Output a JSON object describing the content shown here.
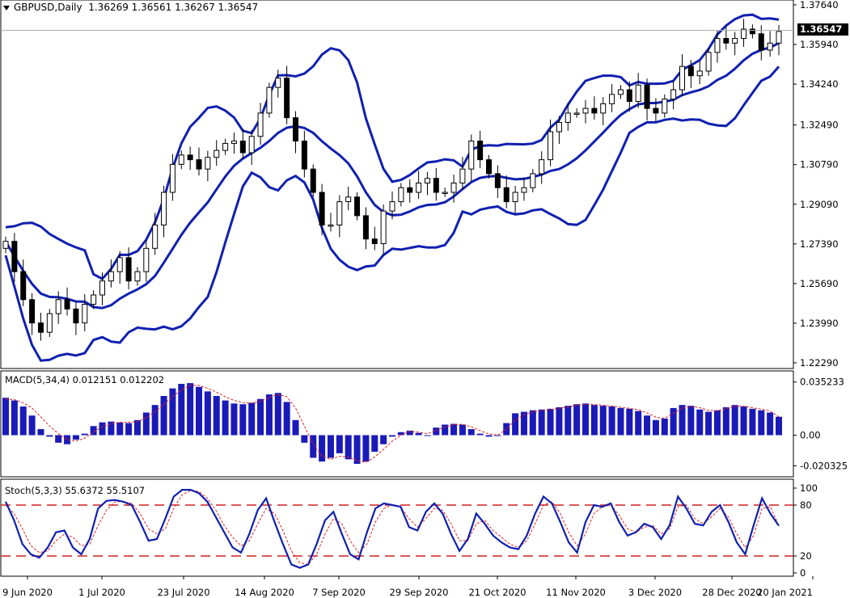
{
  "header": {
    "symbol": "GBPUSD,Daily",
    "ohlc": "1.36269 1.36561 1.36267 1.36547"
  },
  "current_price": "1.36547",
  "macd": {
    "label": "MACD(5,34,4) 0.012151 0.012202"
  },
  "stoch": {
    "label": "Stoch(5,3,3) 55.6372 55.5107"
  },
  "colors": {
    "candle": "#000000",
    "bands": "#1020b0",
    "macd_hist": "#1a1ab8",
    "signal": "#e02020",
    "level": "#d02020"
  },
  "chart_data": [
    {
      "type": "candlestick",
      "title": "GBPUSD,Daily",
      "x_ticks": [
        "9 Jun 2020",
        "1 Jul 2020",
        "23 Jul 2020",
        "14 Aug 2020",
        "7 Sep 2020",
        "29 Sep 2020",
        "21 Oct 2020",
        "11 Nov 2020",
        "3 Dec 2020",
        "28 Dec 2020",
        "20 Jan 2021"
      ],
      "y_ticks": [
        "1.37640",
        "1.35940",
        "1.34240",
        "1.32490",
        "1.30790",
        "1.29090",
        "1.27390",
        "1.25690",
        "1.23990",
        "1.22290"
      ],
      "ylim": [
        1.2229,
        1.3764
      ],
      "last_close": 1.36547,
      "indicators": [
        "Bollinger Bands"
      ],
      "close_path": [
        1.275,
        1.262,
        1.25,
        1.24,
        1.236,
        1.244,
        1.25,
        1.246,
        1.24,
        1.248,
        1.252,
        1.258,
        1.262,
        1.268,
        1.258,
        1.262,
        1.272,
        1.282,
        1.296,
        1.308,
        1.312,
        1.31,
        1.306,
        1.311,
        1.314,
        1.317,
        1.318,
        1.313,
        1.32,
        1.33,
        1.341,
        1.345,
        1.328,
        1.318,
        1.306,
        1.296,
        1.282,
        1.282,
        1.292,
        1.294,
        1.286,
        1.276,
        1.274,
        1.288,
        1.292,
        1.298,
        1.296,
        1.3,
        1.302,
        1.296,
        1.296,
        1.3,
        1.306,
        1.318,
        1.31,
        1.304,
        1.298,
        1.292,
        1.296,
        1.298,
        1.304,
        1.31,
        1.322,
        1.326,
        1.33,
        1.33,
        1.332,
        1.33,
        1.334,
        1.338,
        1.34,
        1.335,
        1.342,
        1.332,
        1.33,
        1.336,
        1.34,
        1.35,
        1.346,
        1.348,
        1.356,
        1.362,
        1.36,
        1.362,
        1.366,
        1.364,
        1.357,
        1.36,
        1.365
      ]
    },
    {
      "type": "bar",
      "title": "MACD(5,34,4) 0.012151 0.012202",
      "y_ticks": [
        "0.035233",
        "0.00",
        "-0.020325"
      ],
      "ylim": [
        -0.0233,
        0.0383
      ],
      "series": [
        {
          "name": "MACD",
          "values": [
            0.0248,
            0.023,
            0.019,
            0.013,
            0.004,
            -0.001,
            -0.005,
            -0.006,
            -0.003,
            0.001,
            0.006,
            0.0085,
            0.009,
            0.0085,
            0.008,
            0.01,
            0.015,
            0.02,
            0.026,
            0.031,
            0.034,
            0.0345,
            0.032,
            0.029,
            0.026,
            0.023,
            0.021,
            0.0205,
            0.0215,
            0.024,
            0.027,
            0.028,
            0.022,
            0.01,
            -0.005,
            -0.015,
            -0.0175,
            -0.015,
            -0.012,
            -0.016,
            -0.019,
            -0.0175,
            -0.011,
            -0.006,
            -0.001,
            0.002,
            0.003,
            0.0015,
            0.0,
            0.005,
            0.007,
            0.0075,
            0.007,
            0.004,
            0.001,
            -0.001,
            0.0,
            0.008,
            0.0145,
            0.0155,
            0.0165,
            0.017,
            0.0175,
            0.0185,
            0.0195,
            0.0205,
            0.021,
            0.02,
            0.0195,
            0.019,
            0.018,
            0.0175,
            0.016,
            0.013,
            0.01,
            0.011,
            0.018,
            0.02,
            0.0195,
            0.017,
            0.0155,
            0.0165,
            0.0185,
            0.02,
            0.019,
            0.0175,
            0.0165,
            0.015,
            0.0122
          ]
        },
        {
          "name": "Signal",
          "values": [
            0.024,
            0.0235,
            0.0215,
            0.018,
            0.012,
            0.006,
            0.001,
            -0.003,
            -0.004,
            -0.002,
            0.002,
            0.0055,
            0.0075,
            0.0085,
            0.0085,
            0.009,
            0.0115,
            0.0155,
            0.0205,
            0.0255,
            0.03,
            0.033,
            0.033,
            0.031,
            0.0285,
            0.0255,
            0.023,
            0.0215,
            0.0212,
            0.0225,
            0.025,
            0.027,
            0.0255,
            0.018,
            0.006,
            -0.006,
            -0.014,
            -0.016,
            -0.014,
            -0.0145,
            -0.017,
            -0.018,
            -0.0145,
            -0.0095,
            -0.004,
            0.0,
            0.0025,
            0.002,
            0.001,
            0.003,
            0.0055,
            0.007,
            0.0072,
            0.0055,
            0.003,
            0.0008,
            0.0,
            0.004,
            0.01,
            0.0135,
            0.0155,
            0.0163,
            0.017,
            0.0178,
            0.0188,
            0.0198,
            0.0205,
            0.0203,
            0.0198,
            0.0193,
            0.0185,
            0.0178,
            0.0168,
            0.0148,
            0.012,
            0.0112,
            0.0145,
            0.018,
            0.0192,
            0.0182,
            0.0165,
            0.0162,
            0.0175,
            0.0192,
            0.0192,
            0.0182,
            0.0172,
            0.016,
            0.0122
          ]
        }
      ]
    },
    {
      "type": "line",
      "title": "Stoch(5,3,3) 55.6372 55.5107",
      "y_ticks": [
        "100",
        "80",
        "20",
        "0"
      ],
      "ylim": [
        0,
        100
      ],
      "levels": [
        80,
        20
      ],
      "series": [
        {
          "name": "%K",
          "values": [
            84,
            62,
            34,
            22,
            18,
            30,
            48,
            50,
            30,
            22,
            40,
            76,
            85,
            86,
            84,
            80,
            60,
            38,
            40,
            64,
            90,
            98,
            98,
            94,
            84,
            66,
            48,
            30,
            24,
            46,
            74,
            88,
            60,
            34,
            10,
            6,
            10,
            34,
            62,
            72,
            46,
            22,
            16,
            48,
            76,
            82,
            80,
            78,
            54,
            50,
            72,
            82,
            70,
            46,
            26,
            40,
            70,
            58,
            44,
            36,
            30,
            28,
            44,
            70,
            90,
            82,
            60,
            36,
            24,
            60,
            80,
            78,
            82,
            60,
            44,
            48,
            58,
            54,
            40,
            56,
            90,
            76,
            58,
            56,
            72,
            80,
            60,
            36,
            22,
            56,
            88,
            70,
            55.6
          ]
        },
        {
          "name": "%D",
          "values": [
            80,
            70,
            52,
            32,
            24,
            26,
            38,
            46,
            42,
            32,
            34,
            56,
            74,
            84,
            84,
            82,
            70,
            52,
            46,
            52,
            76,
            92,
            97,
            96,
            88,
            74,
            56,
            42,
            32,
            38,
            58,
            76,
            70,
            50,
            26,
            12,
            10,
            22,
            46,
            64,
            58,
            38,
            24,
            34,
            60,
            76,
            80,
            78,
            64,
            54,
            64,
            76,
            74,
            58,
            38,
            38,
            58,
            62,
            50,
            42,
            34,
            30,
            38,
            58,
            80,
            84,
            70,
            48,
            32,
            46,
            70,
            78,
            80,
            68,
            52,
            48,
            54,
            56,
            46,
            52,
            78,
            80,
            64,
            58,
            66,
            76,
            66,
            46,
            30,
            44,
            76,
            78,
            55.5
          ]
        }
      ]
    }
  ]
}
